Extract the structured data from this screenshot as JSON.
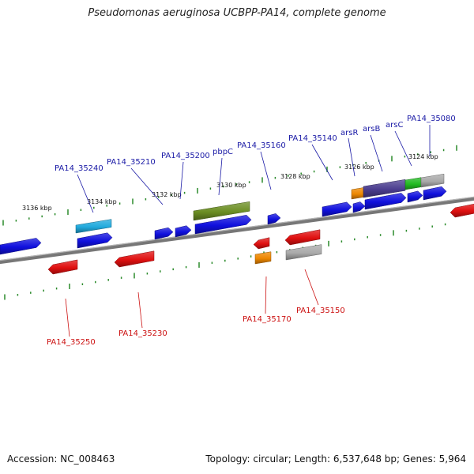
{
  "title": "Pseudomonas aeruginosa UCBPP-PA14, complete genome",
  "accession": "Accession: NC_008463",
  "topology": "Topology: circular; Length: 6,537,648 bp; Genes: 5,964",
  "scale_labels": [
    "3136 kbp",
    "3134 kbp",
    "3132 kbp",
    "3130 kbp",
    "3128 kbp",
    "3126 kbp",
    "3124 kbp"
  ],
  "top_labels": [
    "PA14_35240",
    "PA14_35210",
    "PA14_35200",
    "pbpC",
    "PA14_35160",
    "PA14_35140",
    "arsR",
    "arsB",
    "arsC",
    "PA14_35080"
  ],
  "bottom_labels": [
    "PA14_35250",
    "PA14_35230",
    "PA14_35170",
    "PA14_35150"
  ],
  "colors": {
    "forward_gene": "#1010dd",
    "reverse_gene": "#e01010",
    "cyan_gene": "#22aadd",
    "olive_gene": "#6b8e23",
    "orange_gene": "#ee8800",
    "purple_gene": "#4b3d8f",
    "green_gene": "#22bb22",
    "gray_gene": "#aaaaaa",
    "backbone": "#777777",
    "ticks": "#2a8a2a"
  }
}
